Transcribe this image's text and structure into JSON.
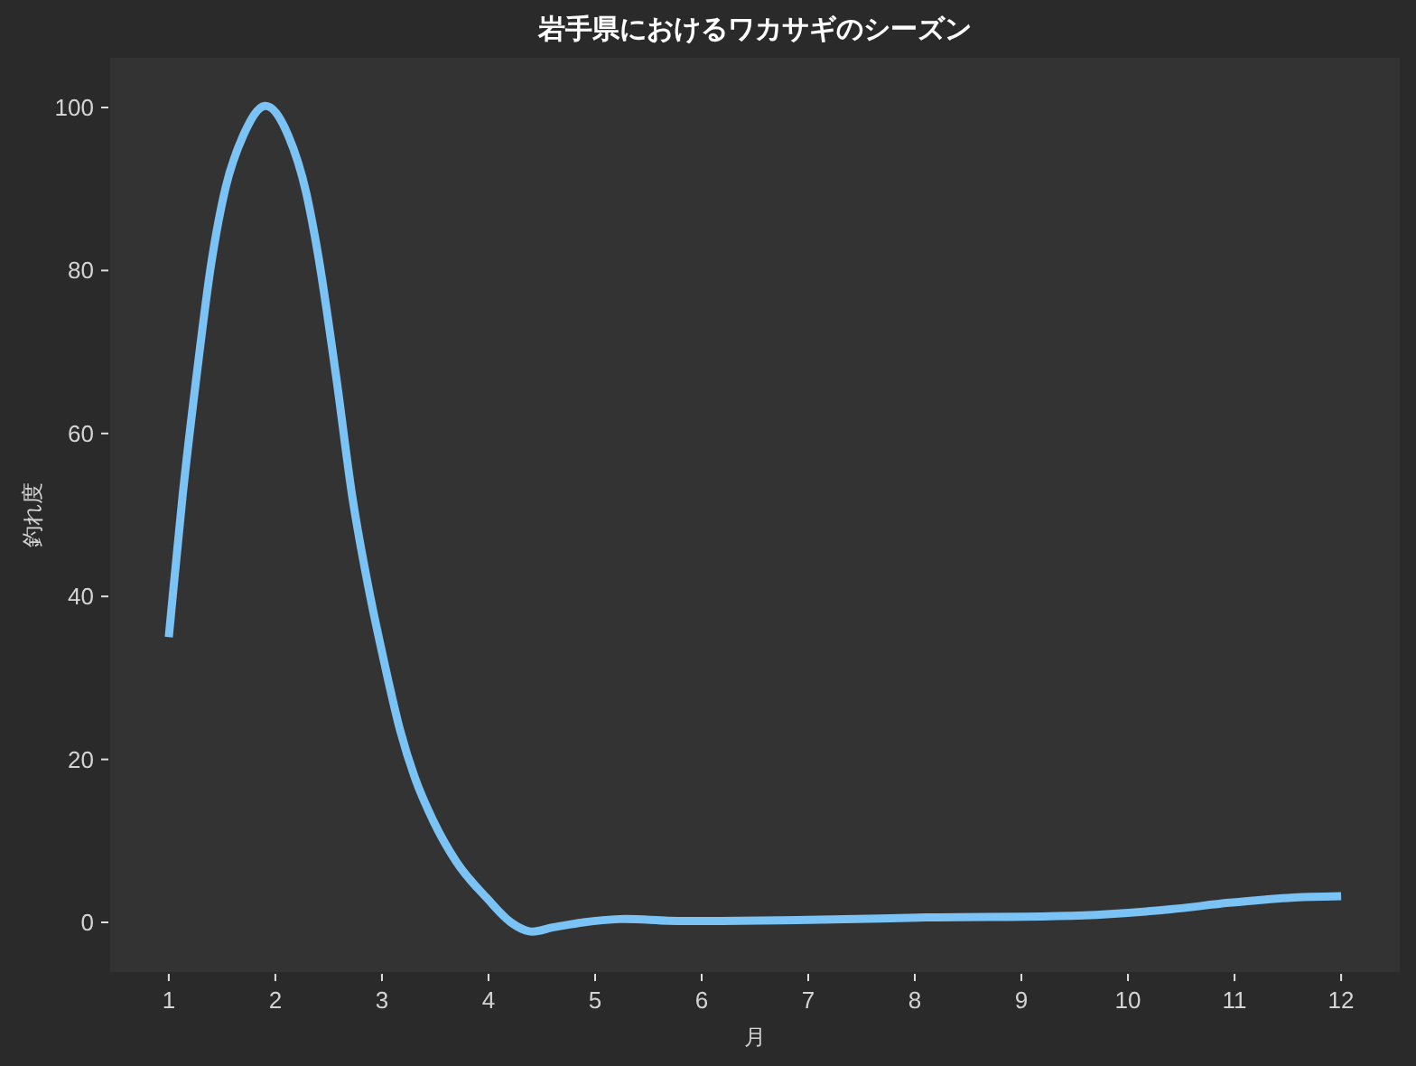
{
  "chart_data": {
    "type": "line",
    "title": "岩手県におけるワカサギのシーズン",
    "xlabel": "月",
    "ylabel": "釣れ度",
    "x": [
      1.0,
      1.13,
      1.26,
      1.4,
      1.53,
      1.7,
      1.9,
      2.12,
      2.29,
      2.4,
      2.57,
      2.72,
      2.89,
      3.02,
      3.17,
      3.31,
      3.48,
      3.7,
      3.99,
      4.21,
      4.38,
      4.61,
      4.89,
      5.23,
      5.69,
      7.0,
      8.1,
      9.8,
      10.4,
      10.95,
      11.5,
      12.0
    ],
    "series": [
      {
        "color": "#7cc3f5",
        "values": [
          35,
          52.4,
          67,
          81,
          90,
          96.6,
          100.2,
          96.6,
          89.5,
          82,
          67,
          52.4,
          40,
          32,
          23.6,
          17.7,
          12.5,
          7.4,
          2.9,
          0,
          -1.1,
          -0.6,
          0,
          0.4,
          0.2,
          0.3,
          0.6,
          1.0,
          1.6,
          2.4,
          3.0,
          3.2
        ]
      }
    ],
    "xlim": [
      0.45,
      12.55
    ],
    "ylim": [
      -6.1,
      106.1
    ],
    "xticks": [
      1,
      2,
      3,
      4,
      5,
      6,
      7,
      8,
      9,
      10,
      11,
      12
    ],
    "yticks": [
      0,
      20,
      40,
      60,
      80,
      100
    ],
    "grid": false,
    "marker": "none",
    "line_style": "solid"
  }
}
